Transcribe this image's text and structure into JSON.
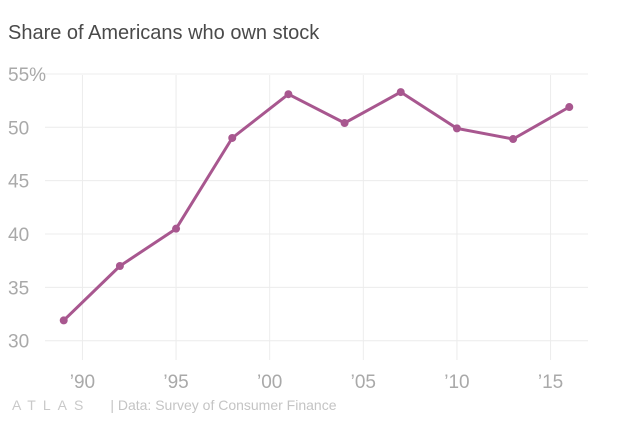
{
  "title": "Share of Americans who own stock",
  "brand": "ATLAS",
  "source": "| Data: Survey of Consumer Finance",
  "colors": {
    "line": "#a8578f",
    "grid": "#ececec",
    "tick": "#a9a9a9"
  },
  "chart_data": {
    "type": "line",
    "title": "Share of Americans who own stock",
    "xlabel": "",
    "ylabel": "",
    "xlim": [
      1988,
      2017
    ],
    "ylim": [
      30,
      55
    ],
    "grid": true,
    "yticks": [
      {
        "value": 55,
        "label": "55%"
      },
      {
        "value": 50,
        "label": "50"
      },
      {
        "value": 45,
        "label": "45"
      },
      {
        "value": 40,
        "label": "40"
      },
      {
        "value": 35,
        "label": "35"
      },
      {
        "value": 30,
        "label": "30"
      }
    ],
    "xticks": [
      {
        "value": 1990,
        "label": "’90"
      },
      {
        "value": 1995,
        "label": "’95"
      },
      {
        "value": 2000,
        "label": "’00"
      },
      {
        "value": 2005,
        "label": "’05"
      },
      {
        "value": 2010,
        "label": "’10"
      },
      {
        "value": 2015,
        "label": "’15"
      }
    ],
    "series": [
      {
        "x": [
          1989,
          1992,
          1995,
          1998,
          2001,
          2004,
          2007,
          2010,
          2013,
          2016
        ],
        "values": [
          31.9,
          37.0,
          40.5,
          49.0,
          53.1,
          50.4,
          53.3,
          49.9,
          48.9,
          51.9
        ]
      }
    ]
  }
}
